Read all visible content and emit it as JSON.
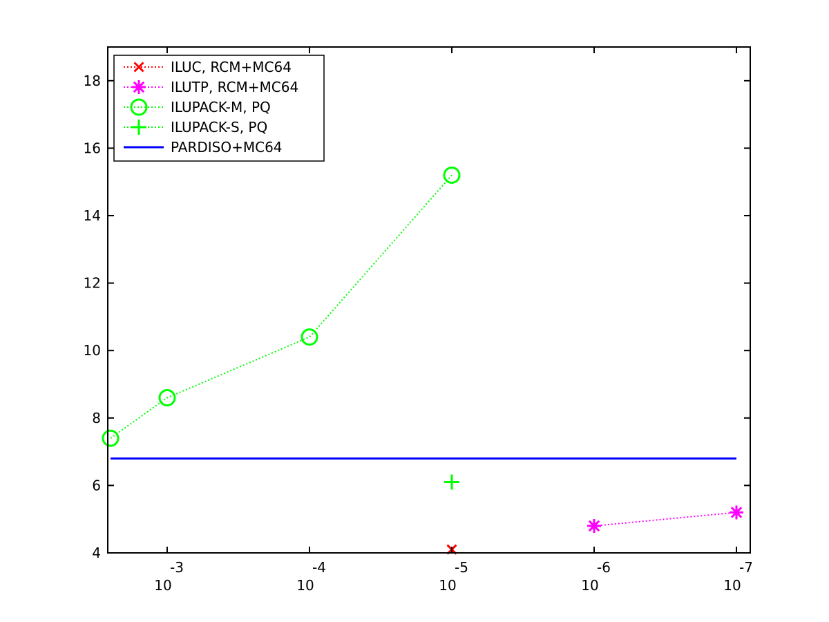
{
  "chart_data": {
    "type": "line",
    "title": "",
    "xlabel": "",
    "ylabel": "",
    "xscale": "log",
    "xdirection": "reversed",
    "xlim": [
      0.0025,
      1e-07
    ],
    "ylim": [
      4,
      19
    ],
    "yticks": [
      {
        "value": 4,
        "label": "4"
      },
      {
        "value": 6,
        "label": "6"
      },
      {
        "value": 8,
        "label": "8"
      },
      {
        "value": 10,
        "label": "10"
      },
      {
        "value": 12,
        "label": "12"
      },
      {
        "value": 14,
        "label": "14"
      },
      {
        "value": 16,
        "label": "16"
      },
      {
        "value": 18,
        "label": "18"
      }
    ],
    "xticks": [
      {
        "value": 0.001,
        "base": "10",
        "exponent": "-3"
      },
      {
        "value": 0.0001,
        "base": "10",
        "exponent": "-4"
      },
      {
        "value": 1e-05,
        "base": "10",
        "exponent": "-5"
      },
      {
        "value": 1e-06,
        "base": "10",
        "exponent": "-6"
      },
      {
        "value": 1e-07,
        "base": "10",
        "exponent": "-7"
      }
    ],
    "grid": false,
    "legend_position": "top-left",
    "series": [
      {
        "name": "ILUC, RCM+MC64",
        "color": "#ff0000",
        "marker": "x",
        "line": "dotted",
        "points": [
          {
            "x": 1e-05,
            "y": 4.1
          }
        ]
      },
      {
        "name": "ILUTP, RCM+MC64",
        "color": "#ff00ff",
        "marker": "asterisk",
        "line": "dotted",
        "points": [
          {
            "x": 1e-06,
            "y": 4.8
          },
          {
            "x": 1e-07,
            "y": 5.2
          }
        ]
      },
      {
        "name": "ILUPACK-M, PQ",
        "color": "#00ff00",
        "marker": "circle",
        "line": "dotted",
        "points": [
          {
            "x": 0.0025,
            "y": 7.4
          },
          {
            "x": 0.001,
            "y": 8.6
          },
          {
            "x": 0.0001,
            "y": 10.4
          },
          {
            "x": 1e-05,
            "y": 15.2
          }
        ]
      },
      {
        "name": "ILUPACK-S, PQ",
        "color": "#00ff00",
        "marker": "plus",
        "line": "dotted",
        "points": [
          {
            "x": 1e-05,
            "y": 6.1
          }
        ]
      },
      {
        "name": "PARDISO+MC64",
        "color": "#0000ff",
        "marker": "none",
        "line": "solid",
        "points": [
          {
            "x": 0.0025,
            "y": 6.8
          },
          {
            "x": 1e-07,
            "y": 6.8
          }
        ]
      }
    ]
  }
}
